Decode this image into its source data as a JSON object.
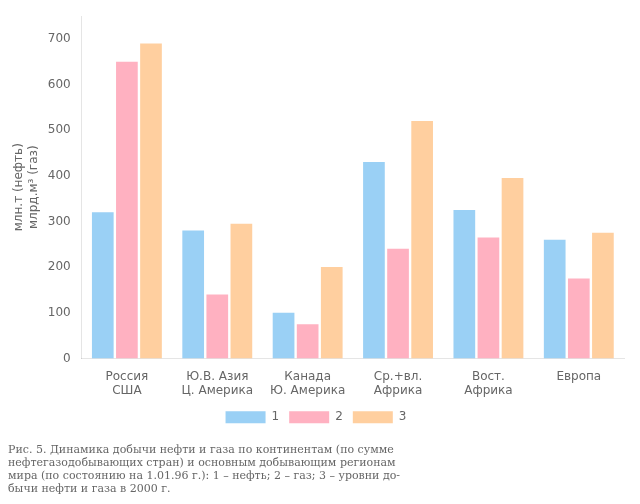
{
  "chart_data": {
    "type": "bar",
    "categories": [
      "Россия\nСША",
      "Ю.В. Азия\nЦ. Америка",
      "Канада\nЮ. Америка",
      "Ср.+вл.\nАфрика",
      "Вост.\nАфрика",
      "Европа"
    ],
    "series": [
      {
        "name": "1",
        "values": [
          320,
          280,
          100,
          430,
          325,
          260
        ]
      },
      {
        "name": "2",
        "values": [
          650,
          140,
          75,
          240,
          265,
          175
        ]
      },
      {
        "name": "3",
        "values": [
          690,
          295,
          200,
          520,
          395,
          275
        ]
      }
    ],
    "ylabel": "млн.т (нефть)\nмлрд.м³ (газ)",
    "ylim": [
      0,
      750
    ],
    "yticks": [
      0,
      100,
      200,
      300,
      400,
      500,
      600,
      700
    ],
    "grid": false,
    "legend": "bottom",
    "caption": "Рис. 5. Динамика добычи нефти и газа по континентам (по сумме\nнефтегазодобывающих стран) и основным добывающим регионам\nмира (по состоянию на 1.01.96 г.): 1 – нефть; 2 – газ; 3 – уровни до-\nбычи нефти и газа в 2000 г."
  }
}
